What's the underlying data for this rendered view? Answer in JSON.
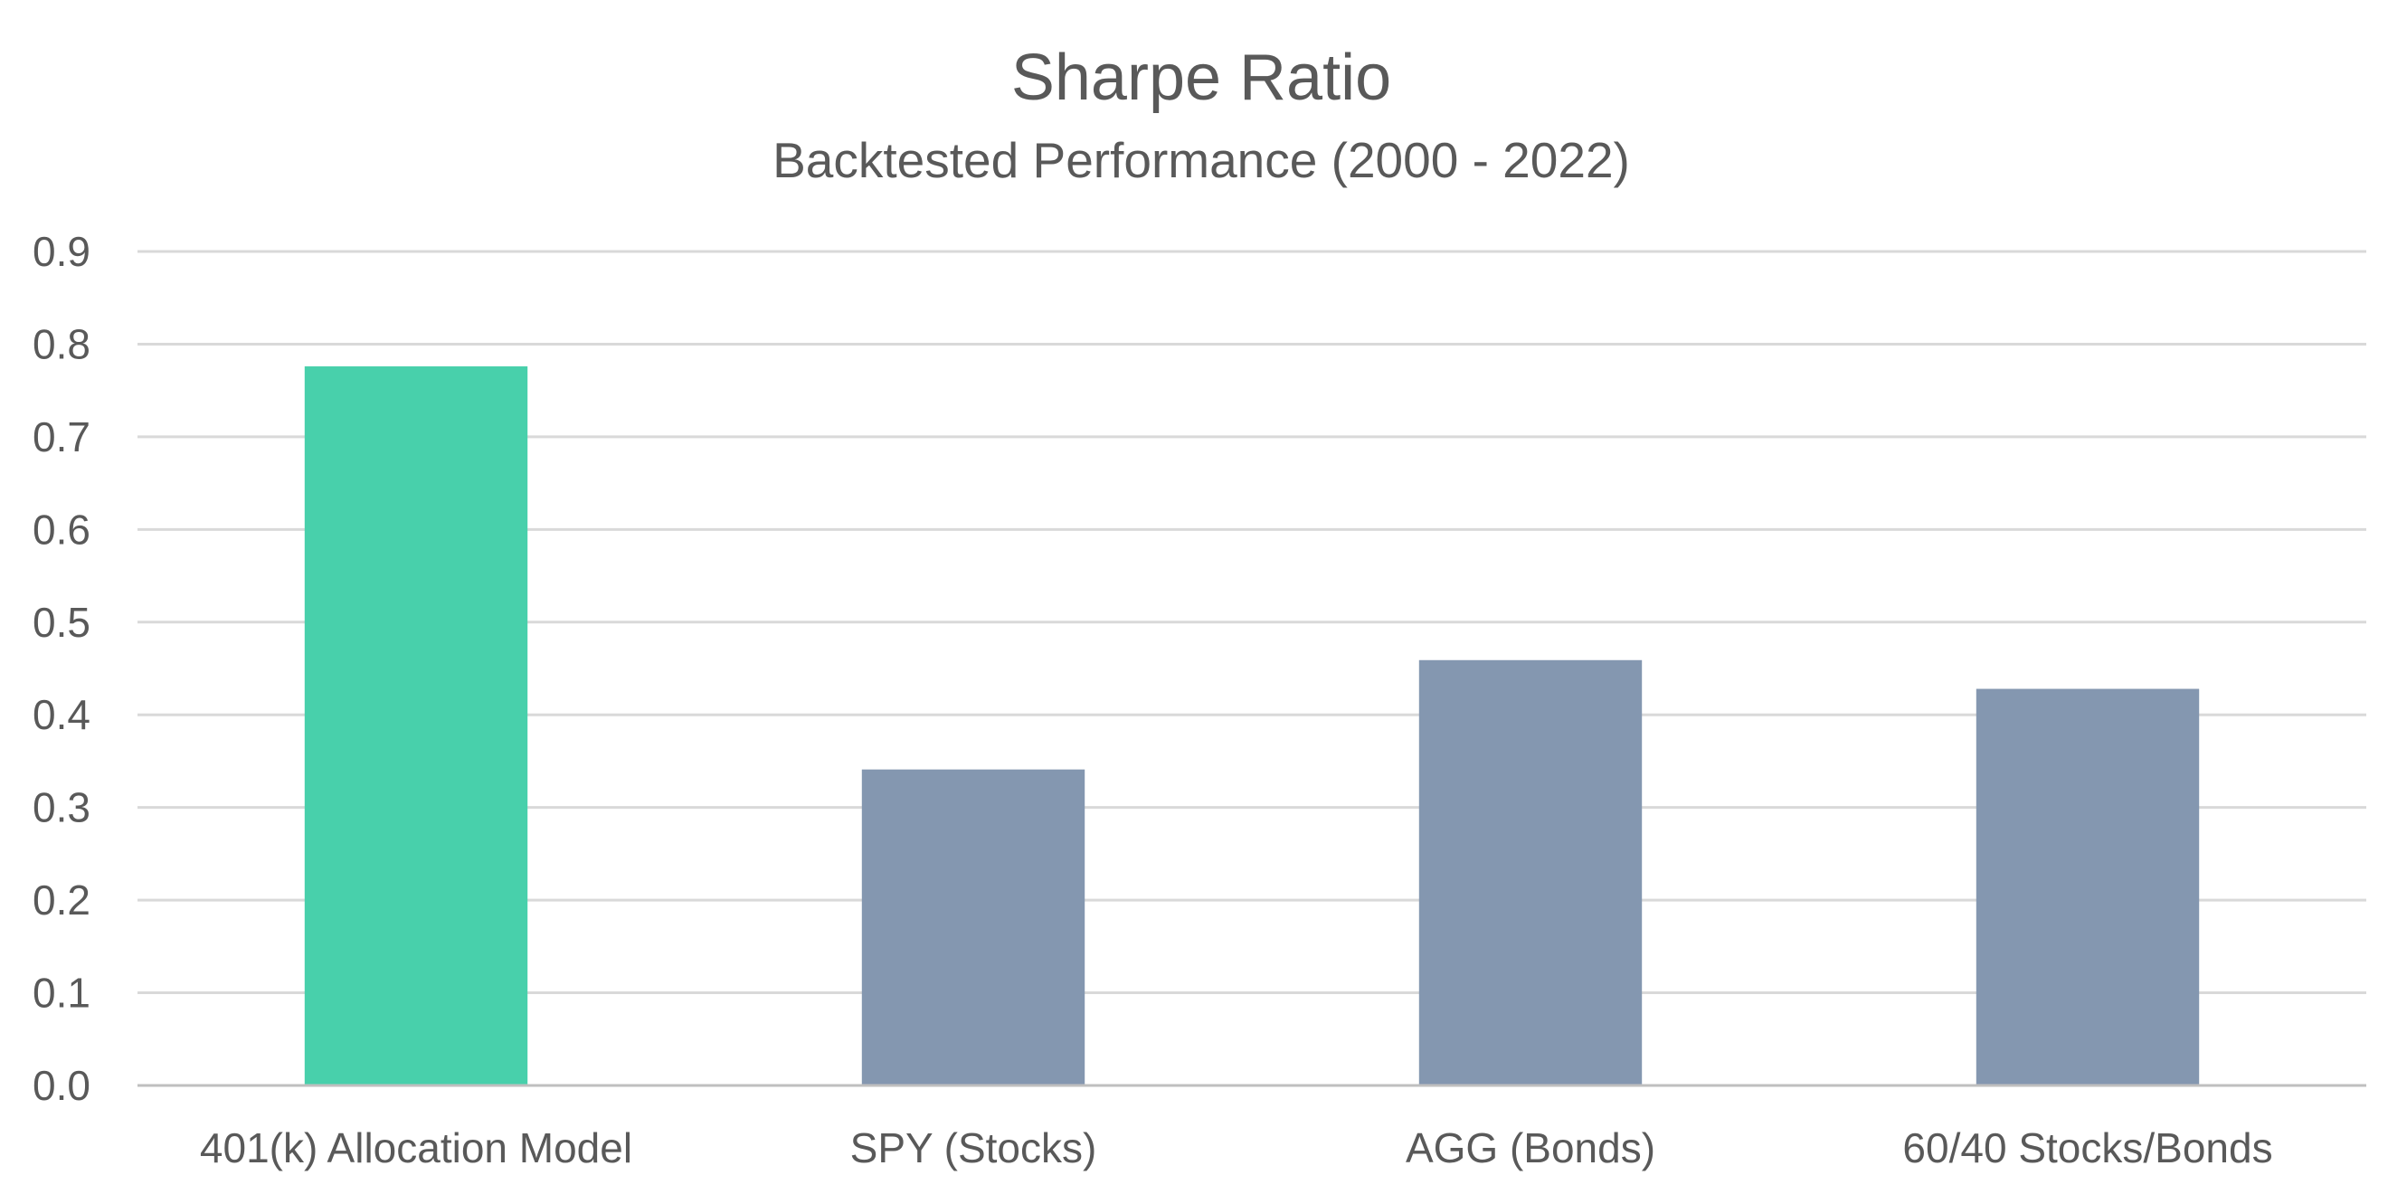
{
  "chart_data": {
    "type": "bar",
    "title": "Sharpe Ratio",
    "subtitle": "Backtested Performance (2000 - 2022)",
    "xlabel": "",
    "ylabel": "",
    "categories": [
      "401(k) Allocation Model",
      "SPY (Stocks)",
      "AGG (Bonds)",
      "60/40 Stocks/Bonds"
    ],
    "values": [
      0.776,
      0.341,
      0.459,
      0.428
    ],
    "bar_colors": [
      "#48d0ab",
      "#8497b0",
      "#8497b0",
      "#8497b0"
    ],
    "ylim": [
      0,
      0.9
    ],
    "yticks": [
      "0.0",
      "0.1",
      "0.2",
      "0.3",
      "0.4",
      "0.5",
      "0.6",
      "0.7",
      "0.8",
      "0.9"
    ],
    "grid": true,
    "legend": "none"
  }
}
